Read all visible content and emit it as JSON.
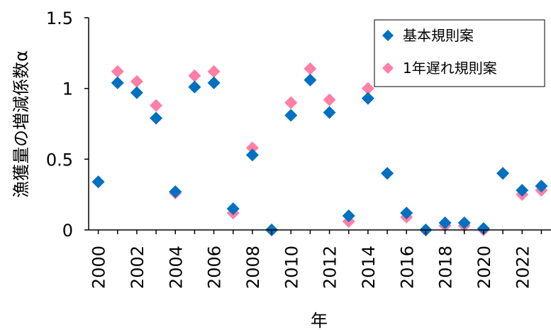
{
  "chart_data": {
    "type": "scatter",
    "xlabel": "年",
    "ylabel": "漁獲量の増減係数α",
    "ylim": [
      0,
      1.5
    ],
    "xlim": [
      1999.5,
      2023.5
    ],
    "y_ticks": [
      "0",
      "0.5",
      "1",
      "1.5"
    ],
    "x_ticks": [
      "2000",
      "2002",
      "2004",
      "2006",
      "2008",
      "2010",
      "2012",
      "2014",
      "2016",
      "2018",
      "2020",
      "2022"
    ],
    "grid": false,
    "legend_position": "top-right",
    "x": [
      2000,
      2001,
      2002,
      2003,
      2004,
      2005,
      2006,
      2007,
      2008,
      2009,
      2010,
      2011,
      2012,
      2013,
      2014,
      2015,
      2016,
      2017,
      2018,
      2019,
      2020,
      2021,
      2022,
      2023
    ],
    "series": [
      {
        "name": "基本規則案",
        "color": "#0070c0",
        "marker": "diamond",
        "values": [
          0.34,
          1.04,
          0.97,
          0.79,
          0.27,
          1.01,
          1.04,
          0.15,
          0.53,
          0.0,
          0.81,
          1.06,
          0.83,
          0.1,
          0.93,
          0.4,
          0.12,
          0.0,
          0.05,
          0.05,
          0.01,
          0.4,
          0.28,
          0.31
        ]
      },
      {
        "name": "1年遅れ規則案",
        "color": "#ff7fa7",
        "marker": "diamond",
        "values": [
          0.34,
          1.12,
          1.05,
          0.88,
          0.26,
          1.09,
          1.12,
          0.12,
          0.58,
          0.0,
          0.9,
          1.14,
          0.92,
          0.06,
          1.0,
          0.4,
          0.09,
          0.0,
          0.03,
          0.03,
          0.0,
          0.4,
          0.25,
          0.28
        ]
      }
    ]
  }
}
